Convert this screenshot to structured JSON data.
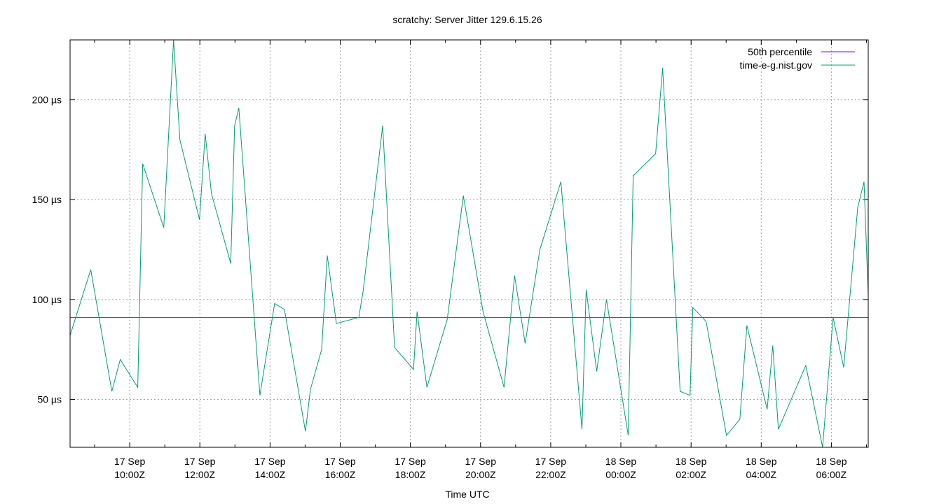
{
  "chart_data": {
    "type": "line",
    "title": "scratchy: Server Jitter 129.6.15.26",
    "xlabel": "Time UTC",
    "ylabel": "",
    "grid": true,
    "legend_position": "top-right",
    "y_unit": "µs",
    "ylim": [
      26,
      230
    ],
    "xlim_hours": [
      8.3,
      31.05
    ],
    "x_ticks": [
      {
        "line1": "17 Sep",
        "line2": "10:00Z",
        "hours": 10
      },
      {
        "line1": "17 Sep",
        "line2": "12:00Z",
        "hours": 12
      },
      {
        "line1": "17 Sep",
        "line2": "14:00Z",
        "hours": 14
      },
      {
        "line1": "17 Sep",
        "line2": "16:00Z",
        "hours": 16
      },
      {
        "line1": "17 Sep",
        "line2": "18:00Z",
        "hours": 18
      },
      {
        "line1": "17 Sep",
        "line2": "20:00Z",
        "hours": 20
      },
      {
        "line1": "17 Sep",
        "line2": "22:00Z",
        "hours": 22
      },
      {
        "line1": "18 Sep",
        "line2": "00:00Z",
        "hours": 24
      },
      {
        "line1": "18 Sep",
        "line2": "02:00Z",
        "hours": 26
      },
      {
        "line1": "18 Sep",
        "line2": "04:00Z",
        "hours": 28
      },
      {
        "line1": "18 Sep",
        "line2": "06:00Z",
        "hours": 30
      }
    ],
    "y_ticks": [
      {
        "label": "50 µs",
        "value": 50
      },
      {
        "label": "100 µs",
        "value": 100
      },
      {
        "label": "150 µs",
        "value": 150
      },
      {
        "label": "200 µs",
        "value": 200
      }
    ],
    "series": [
      {
        "name": "50th percentile",
        "color": "#9400d3",
        "points": [
          [
            8.3,
            91
          ],
          [
            31.05,
            91
          ]
        ]
      },
      {
        "name": "time-e-g.nist.gov",
        "color": "#009e73",
        "points": [
          [
            8.3,
            82
          ],
          [
            8.89,
            115
          ],
          [
            9.49,
            54
          ],
          [
            9.73,
            70
          ],
          [
            10.23,
            56
          ],
          [
            10.37,
            168
          ],
          [
            10.97,
            136
          ],
          [
            11.25,
            230
          ],
          [
            11.43,
            180
          ],
          [
            11.99,
            140
          ],
          [
            12.15,
            183
          ],
          [
            12.33,
            153
          ],
          [
            12.88,
            118
          ],
          [
            12.99,
            187
          ],
          [
            13.11,
            196
          ],
          [
            13.71,
            52
          ],
          [
            14.13,
            98
          ],
          [
            14.41,
            95
          ],
          [
            15.01,
            34
          ],
          [
            15.15,
            55
          ],
          [
            15.47,
            75
          ],
          [
            15.63,
            122
          ],
          [
            15.89,
            88
          ],
          [
            16.53,
            91
          ],
          [
            16.65,
            104
          ],
          [
            17.21,
            187
          ],
          [
            17.55,
            76
          ],
          [
            18.09,
            65
          ],
          [
            18.19,
            94
          ],
          [
            18.47,
            56
          ],
          [
            19.05,
            90
          ],
          [
            19.51,
            152
          ],
          [
            20.07,
            94
          ],
          [
            20.67,
            56
          ],
          [
            20.97,
            112
          ],
          [
            21.27,
            78
          ],
          [
            21.69,
            125
          ],
          [
            22.29,
            159
          ],
          [
            22.89,
            35
          ],
          [
            23.01,
            105
          ],
          [
            23.31,
            64
          ],
          [
            23.59,
            100
          ],
          [
            24.21,
            32
          ],
          [
            24.35,
            162
          ],
          [
            24.99,
            173
          ],
          [
            25.19,
            216
          ],
          [
            25.69,
            54
          ],
          [
            25.97,
            52
          ],
          [
            26.05,
            96
          ],
          [
            26.43,
            89
          ],
          [
            27.01,
            32
          ],
          [
            27.39,
            40
          ],
          [
            27.59,
            87
          ],
          [
            28.17,
            45
          ],
          [
            28.33,
            77
          ],
          [
            28.49,
            35
          ],
          [
            29.27,
            67
          ],
          [
            29.75,
            26
          ],
          [
            30.05,
            91
          ],
          [
            30.35,
            66
          ],
          [
            30.75,
            146
          ],
          [
            30.93,
            159
          ],
          [
            31.05,
            102
          ]
        ]
      }
    ]
  }
}
